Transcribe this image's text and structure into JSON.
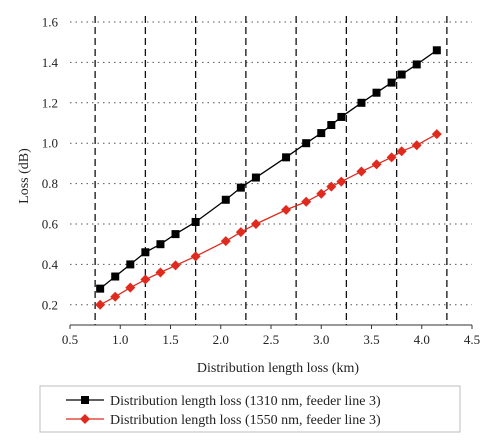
{
  "chart_data": {
    "type": "line",
    "title": "",
    "xlabel": "Distribution length loss (km)",
    "ylabel": "Loss (dB)",
    "xlim": [
      0.5,
      4.5
    ],
    "ylim": [
      0.1,
      1.6
    ],
    "xticks": [
      0.5,
      1.0,
      1.5,
      2.0,
      2.5,
      3.0,
      3.5,
      4.0,
      4.5
    ],
    "yticks": [
      0.2,
      0.4,
      0.6,
      0.8,
      1.0,
      1.2,
      1.4,
      1.6
    ],
    "xtick_labels": [
      "0.5",
      "1.0",
      "1.5",
      "2.0",
      "2.5",
      "3.0",
      "3.5",
      "4.0",
      "4.5"
    ],
    "ytick_labels": [
      "0.2",
      "0.4",
      "0.6",
      "0.8",
      "1.0",
      "1.2",
      "1.4",
      "1.6"
    ],
    "dashed_vertical_lines": [
      0.75,
      1.25,
      1.75,
      2.25,
      2.75,
      3.25,
      3.75,
      4.25
    ],
    "horizontal_grid": "dotted",
    "legend_placement": "bottom",
    "series": [
      {
        "name": "Distribution length loss (1310 nm, feeder line 3)",
        "color": "#000000",
        "marker": "square",
        "x": [
          0.8,
          0.95,
          1.1,
          1.25,
          1.4,
          1.55,
          1.75,
          2.05,
          2.2,
          2.35,
          2.65,
          2.85,
          3.0,
          3.1,
          3.2,
          3.4,
          3.55,
          3.7,
          3.8,
          3.95,
          4.15
        ],
        "y": [
          0.28,
          0.34,
          0.4,
          0.46,
          0.5,
          0.55,
          0.61,
          0.72,
          0.78,
          0.83,
          0.93,
          1.0,
          1.05,
          1.09,
          1.13,
          1.2,
          1.25,
          1.3,
          1.34,
          1.39,
          1.46
        ]
      },
      {
        "name": "Distribution length loss (1550 nm, feeder line 3)",
        "color": "#e02a1e",
        "marker": "diamond",
        "x": [
          0.8,
          0.95,
          1.1,
          1.25,
          1.4,
          1.55,
          1.75,
          2.05,
          2.2,
          2.35,
          2.65,
          2.85,
          3.0,
          3.1,
          3.2,
          3.4,
          3.55,
          3.7,
          3.8,
          3.95,
          4.15
        ],
        "y": [
          0.2,
          0.24,
          0.285,
          0.325,
          0.36,
          0.395,
          0.44,
          0.515,
          0.56,
          0.6,
          0.67,
          0.71,
          0.75,
          0.785,
          0.81,
          0.86,
          0.895,
          0.93,
          0.96,
          0.99,
          1.045
        ]
      }
    ]
  }
}
